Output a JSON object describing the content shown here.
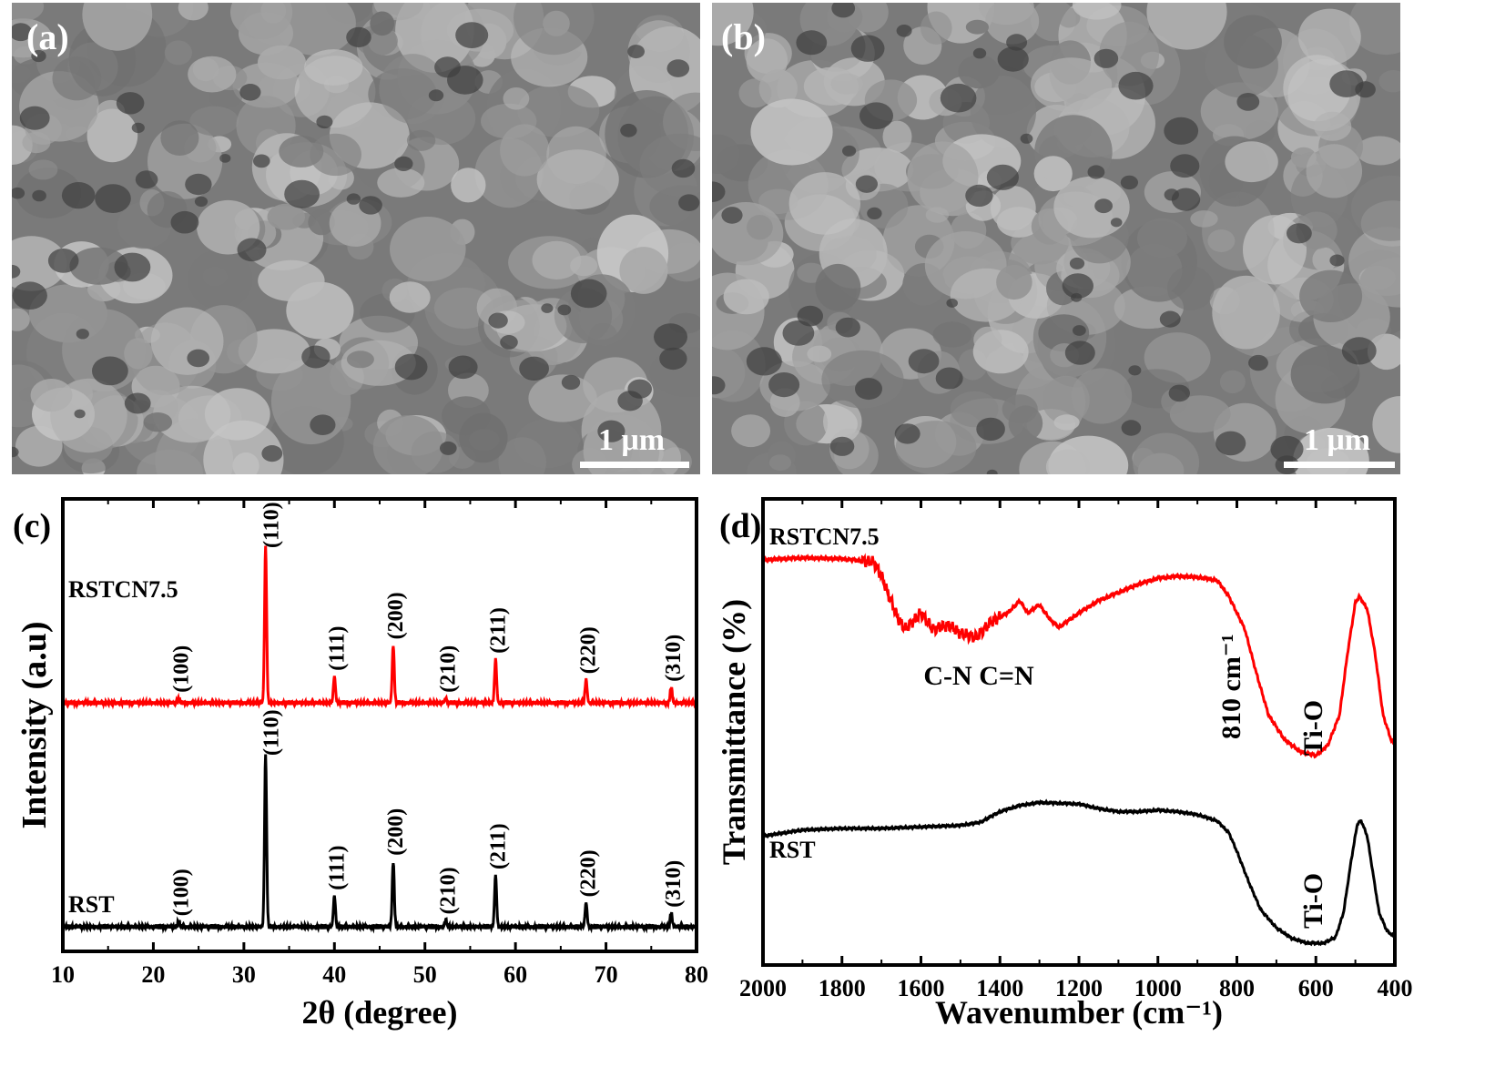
{
  "panels": {
    "a": {
      "letter": "(a)",
      "scale_label": "1 μm"
    },
    "b": {
      "letter": "(b)",
      "scale_label": "1 μm"
    }
  },
  "colors": {
    "rstcn": "#ff0000",
    "rst": "#000000",
    "sem_bg": "#7a7a7a",
    "sem_grain": "#b5b5b5"
  },
  "chart_data": [
    {
      "panel": "(c)",
      "type": "line",
      "xlabel": "2θ (degree)",
      "ylabel": "Intensity (a.u)",
      "xlim": [
        10,
        80
      ],
      "xticks": [
        10,
        20,
        30,
        40,
        50,
        60,
        70,
        80
      ],
      "y_ticks_labeled": false,
      "series": [
        {
          "name": "RSTCN7.5",
          "color": "#ff0000",
          "peaks": [
            {
              "x": 22.8,
              "h": 0.03,
              "label": "(100)"
            },
            {
              "x": 32.4,
              "h": 1.0,
              "label": "(110)"
            },
            {
              "x": 40.0,
              "h": 0.17,
              "label": "(111)"
            },
            {
              "x": 46.5,
              "h": 0.37,
              "label": "(200)"
            },
            {
              "x": 52.3,
              "h": 0.03,
              "label": "(210)"
            },
            {
              "x": 57.8,
              "h": 0.28,
              "label": "(211)"
            },
            {
              "x": 67.8,
              "h": 0.15,
              "label": "(220)"
            },
            {
              "x": 77.2,
              "h": 0.1,
              "label": "(310)"
            }
          ]
        },
        {
          "name": "RST",
          "color": "#000000",
          "peaks": [
            {
              "x": 22.8,
              "h": 0.03,
              "label": "(100)"
            },
            {
              "x": 32.4,
              "h": 1.0,
              "label": "(110)"
            },
            {
              "x": 40.0,
              "h": 0.18,
              "label": "(111)"
            },
            {
              "x": 46.5,
              "h": 0.38,
              "label": "(200)"
            },
            {
              "x": 52.3,
              "h": 0.04,
              "label": "(210)"
            },
            {
              "x": 57.8,
              "h": 0.3,
              "label": "(211)"
            },
            {
              "x": 67.8,
              "h": 0.14,
              "label": "(220)"
            },
            {
              "x": 77.2,
              "h": 0.08,
              "label": "(310)"
            }
          ]
        }
      ]
    },
    {
      "panel": "(d)",
      "type": "line",
      "xlabel": "Wavenumber (cm⁻¹)",
      "ylabel": "Transmittance (%)",
      "xlim": [
        2000,
        400
      ],
      "xticks": [
        2000,
        1800,
        1600,
        1400,
        1200,
        1000,
        800,
        600,
        400
      ],
      "y_ticks_labeled": false,
      "annotations": {
        "cn": "C-N C=N",
        "band_810": "810 cm⁻¹",
        "tio_rstcn": "Ti-O",
        "tio_rst": "Ti-O"
      },
      "series": [
        {
          "name": "RSTCN7.5",
          "color": "#ff0000",
          "points": [
            [
              2000,
              0.96
            ],
            [
              1900,
              0.97
            ],
            [
              1800,
              0.965
            ],
            [
              1720,
              0.95
            ],
            [
              1700,
              0.88
            ],
            [
              1660,
              0.68
            ],
            [
              1640,
              0.62
            ],
            [
              1600,
              0.7
            ],
            [
              1570,
              0.62
            ],
            [
              1530,
              0.64
            ],
            [
              1500,
              0.6
            ],
            [
              1460,
              0.58
            ],
            [
              1420,
              0.66
            ],
            [
              1380,
              0.7
            ],
            [
              1350,
              0.76
            ],
            [
              1330,
              0.7
            ],
            [
              1300,
              0.74
            ],
            [
              1270,
              0.66
            ],
            [
              1250,
              0.63
            ],
            [
              1200,
              0.7
            ],
            [
              1150,
              0.76
            ],
            [
              1100,
              0.8
            ],
            [
              1050,
              0.84
            ],
            [
              1000,
              0.87
            ],
            [
              950,
              0.88
            ],
            [
              900,
              0.875
            ],
            [
              850,
              0.86
            ],
            [
              820,
              0.78
            ],
            [
              810,
              0.74
            ],
            [
              800,
              0.7
            ],
            [
              780,
              0.62
            ],
            [
              750,
              0.4
            ],
            [
              720,
              0.2
            ],
            [
              680,
              0.08
            ],
            [
              640,
              0.02
            ],
            [
              600,
              0.0
            ],
            [
              570,
              0.05
            ],
            [
              540,
              0.2
            ],
            [
              520,
              0.5
            ],
            [
              500,
              0.75
            ],
            [
              490,
              0.78
            ],
            [
              470,
              0.72
            ],
            [
              450,
              0.5
            ],
            [
              430,
              0.2
            ],
            [
              410,
              0.08
            ],
            [
              400,
              0.05
            ]
          ]
        },
        {
          "name": "RST",
          "color": "#000000",
          "points": [
            [
              2000,
              0.7
            ],
            [
              1900,
              0.74
            ],
            [
              1800,
              0.75
            ],
            [
              1700,
              0.75
            ],
            [
              1600,
              0.76
            ],
            [
              1500,
              0.77
            ],
            [
              1450,
              0.79
            ],
            [
              1400,
              0.86
            ],
            [
              1350,
              0.9
            ],
            [
              1300,
              0.92
            ],
            [
              1200,
              0.91
            ],
            [
              1150,
              0.88
            ],
            [
              1100,
              0.86
            ],
            [
              1050,
              0.86
            ],
            [
              1000,
              0.87
            ],
            [
              950,
              0.86
            ],
            [
              900,
              0.84
            ],
            [
              850,
              0.8
            ],
            [
              820,
              0.72
            ],
            [
              800,
              0.6
            ],
            [
              770,
              0.4
            ],
            [
              740,
              0.22
            ],
            [
              700,
              0.1
            ],
            [
              660,
              0.03
            ],
            [
              620,
              0.0
            ],
            [
              580,
              0.0
            ],
            [
              550,
              0.04
            ],
            [
              530,
              0.2
            ],
            [
              510,
              0.55
            ],
            [
              495,
              0.78
            ],
            [
              485,
              0.8
            ],
            [
              470,
              0.7
            ],
            [
              455,
              0.45
            ],
            [
              440,
              0.2
            ],
            [
              420,
              0.08
            ],
            [
              400,
              0.04
            ]
          ]
        }
      ]
    }
  ]
}
